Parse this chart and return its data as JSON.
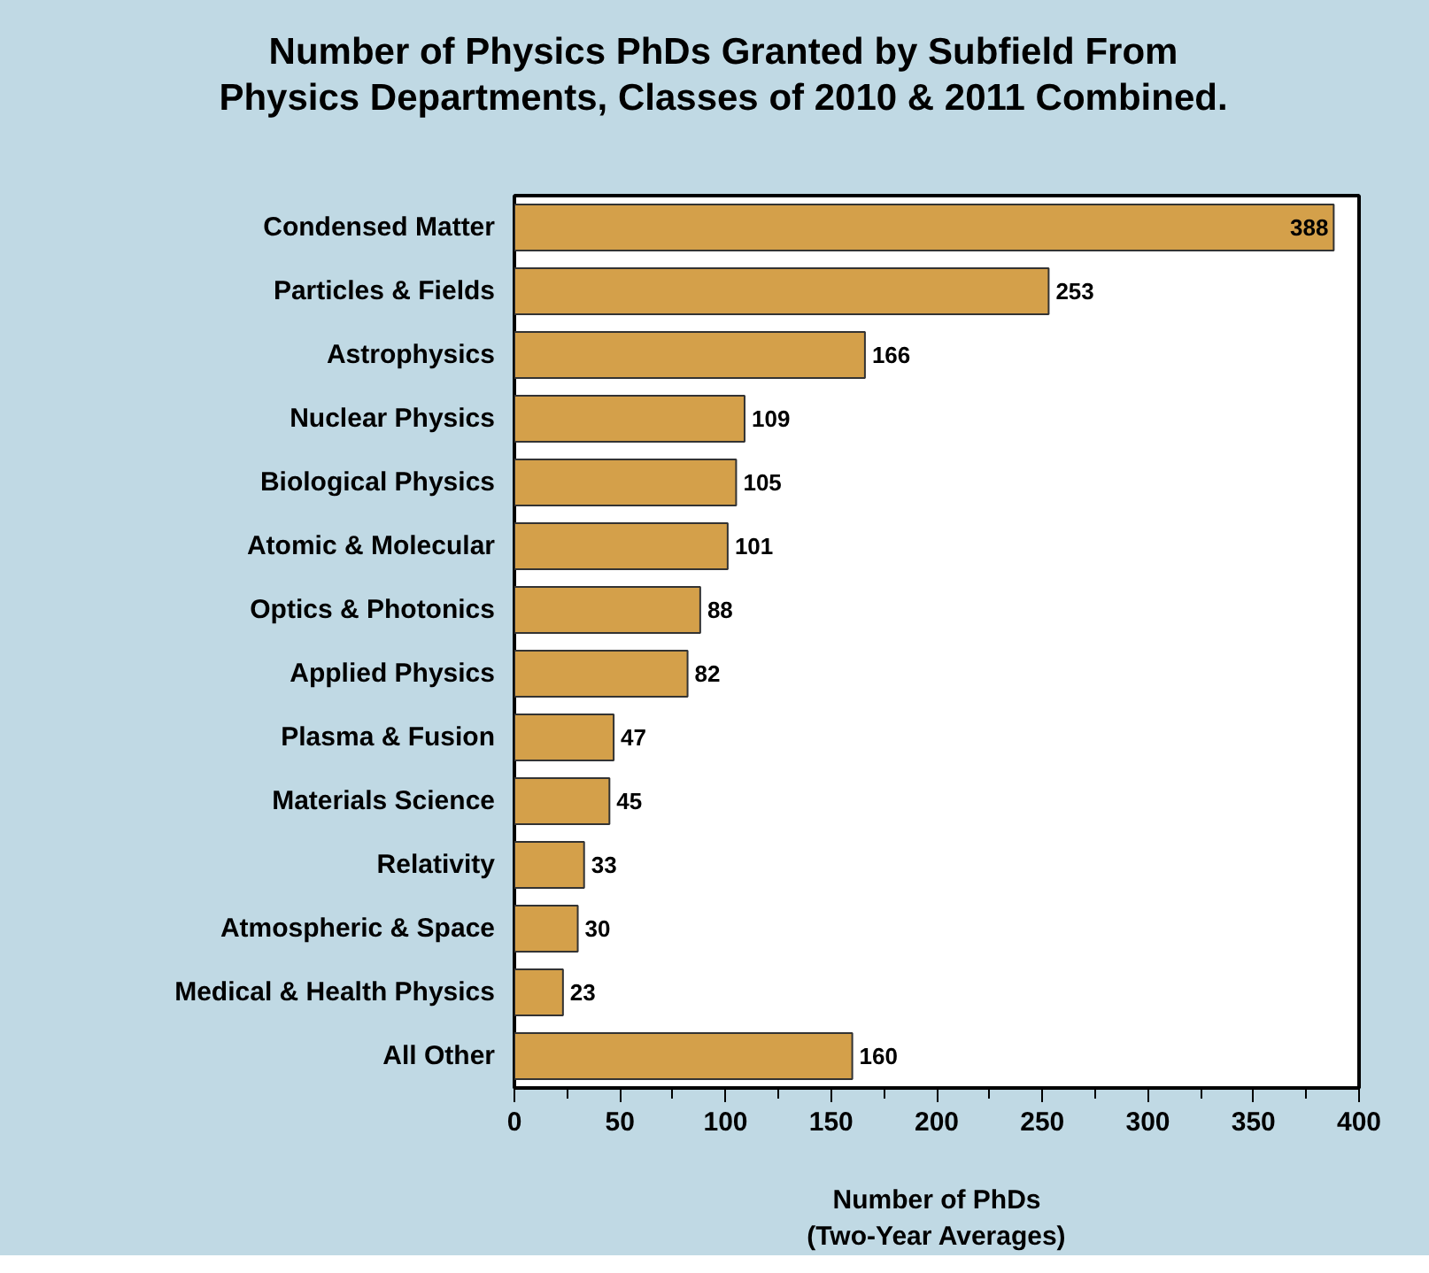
{
  "chart_data": {
    "type": "bar",
    "orientation": "horizontal",
    "title": "Number of Physics PhDs Granted by Subfield From\nPhysics Departments, Classes of 2010 & 2011 Combined.",
    "categories": [
      "Condensed Matter",
      "Particles & Fields",
      "Astrophysics",
      "Nuclear Physics",
      "Biological Physics",
      "Atomic & Molecular",
      "Optics & Photonics",
      "Applied Physics",
      "Plasma & Fusion",
      "Materials Science",
      "Relativity",
      "Atmospheric & Space",
      "Medical & Health Physics",
      "All Other"
    ],
    "values": [
      388,
      253,
      166,
      109,
      105,
      101,
      88,
      82,
      47,
      45,
      33,
      30,
      23,
      160
    ],
    "color": "#d4a04a",
    "xlim": [
      0,
      400
    ],
    "xticks": [
      0,
      {
        "value": 25,
        "label": null
      },
      50,
      {
        "value": 75,
        "label": null
      },
      100,
      {
        "value": 125,
        "label": null
      },
      150,
      {
        "value": 175,
        "label": null
      },
      200,
      {
        "value": 225,
        "label": null
      },
      250,
      {
        "value": 275,
        "label": null
      },
      300,
      {
        "value": 325,
        "label": null
      },
      350,
      {
        "value": 375,
        "label": null
      },
      400
    ],
    "xlabel": "Number of PhDs\n(Two-Year Averages)",
    "data_labels": true,
    "grid": false
  }
}
